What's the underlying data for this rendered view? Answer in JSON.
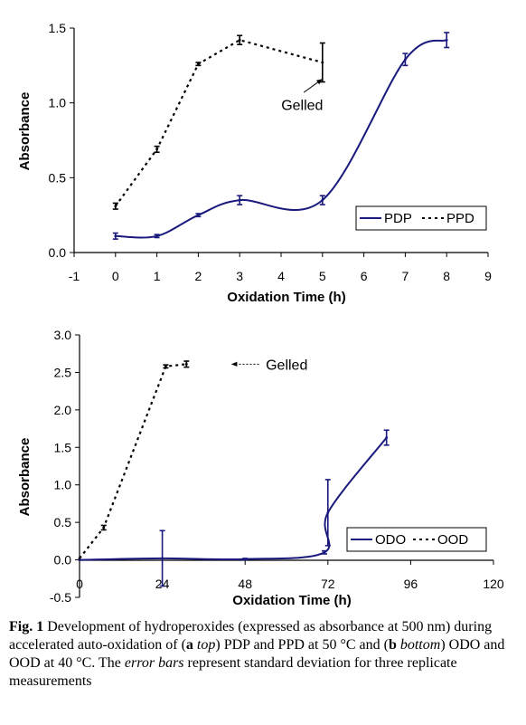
{
  "chart_data": [
    {
      "type": "line",
      "xlabel": "Oxidation Time (h)",
      "ylabel": "Absorbance",
      "xlim": [
        -1,
        9
      ],
      "ylim": [
        0.0,
        1.5
      ],
      "x_ticks": [
        -1,
        0,
        1,
        2,
        3,
        4,
        5,
        6,
        7,
        8,
        9
      ],
      "y_ticks": [
        0.0,
        0.5,
        1.0,
        1.5
      ],
      "x_tick_labels": [
        "-1",
        "0",
        "1",
        "2",
        "3",
        "4",
        "5",
        "6",
        "7",
        "8",
        "9"
      ],
      "y_tick_labels": [
        "0.0",
        "0.5",
        "1.0",
        "1.5"
      ],
      "grid": false,
      "legend": "bottom-right",
      "series": [
        {
          "name": "PDP",
          "color": "#1a1a7e",
          "line": "solid",
          "smooth": true,
          "x": [
            0,
            1,
            2,
            3,
            5,
            7,
            8
          ],
          "y": [
            0.11,
            0.11,
            0.25,
            0.35,
            0.35,
            1.29,
            1.42
          ],
          "err": [
            0.02,
            0.01,
            0.01,
            0.03,
            0.03,
            0.04,
            0.05
          ]
        },
        {
          "name": "PPD",
          "color": "#000000",
          "line": "dashed",
          "smooth": false,
          "x": [
            0,
            1,
            2,
            3,
            5
          ],
          "y": [
            0.31,
            0.69,
            1.26,
            1.42,
            1.27
          ],
          "err": [
            0.02,
            0.02,
            0.01,
            0.03,
            0.13
          ]
        }
      ],
      "annotations": [
        {
          "text": "Gelled",
          "x": 4.55,
          "y": 0.99,
          "arrow_to": {
            "x": 5.0,
            "y": 1.16
          },
          "arrow_from": {
            "x": 4.55,
            "y": 1.07
          }
        }
      ]
    },
    {
      "type": "line",
      "xlabel": "Oxidation Time (h)",
      "ylabel": "Absorbance",
      "xlim": [
        0,
        120
      ],
      "ylim": [
        -0.5,
        3.0
      ],
      "x_ticks": [
        0,
        24,
        48,
        72,
        96,
        120
      ],
      "y_ticks": [
        -0.5,
        0.0,
        0.5,
        1.0,
        1.5,
        2.0,
        2.5,
        3.0
      ],
      "x_tick_labels": [
        "0",
        "24",
        "48",
        "72",
        "96",
        "120"
      ],
      "y_tick_labels": [
        "-0.5",
        "0.0",
        "0.5",
        "1.0",
        "1.5",
        "2.0",
        "2.5",
        "3.0"
      ],
      "grid": false,
      "legend": "right",
      "series": [
        {
          "name": "ODO",
          "color": "#1a1a7e",
          "line": "solid",
          "smooth": true,
          "x": [
            0,
            24,
            48,
            71,
            72,
            89
          ],
          "y": [
            0.0,
            0.02,
            0.01,
            0.1,
            0.63,
            1.63
          ],
          "err": [
            0.0,
            0.37,
            0.01,
            0.02,
            0.44,
            0.1
          ]
        },
        {
          "name": "OOD",
          "color": "#000000",
          "line": "dashed",
          "smooth": false,
          "x": [
            0,
            7,
            25,
            31
          ],
          "y": [
            0.02,
            0.43,
            2.58,
            2.61
          ],
          "err": [
            0.0,
            0.03,
            0.02,
            0.04
          ]
        }
      ],
      "annotations": [
        {
          "text": "Gelled",
          "x": 54,
          "y": 2.61,
          "arrow_to": {
            "x": 44,
            "y": 2.61
          },
          "arrow_from": {
            "x": 52,
            "y": 2.61
          }
        }
      ]
    }
  ],
  "caption": {
    "fig_label": "Fig. 1",
    "p1": " Development of hydroperoxides (expressed as absorbance at 500 nm) during accelerated auto-oxidation of (",
    "a": "a",
    "top": "top",
    "p2": ") PDP and PPD at 50 °C and (",
    "b": "b",
    "bottom": "bottom",
    "p3": ") ODO and OOD at 40 °C. The ",
    "error_bars": "error bars",
    "p4": " represent standard deviation for three replicate measurements"
  }
}
